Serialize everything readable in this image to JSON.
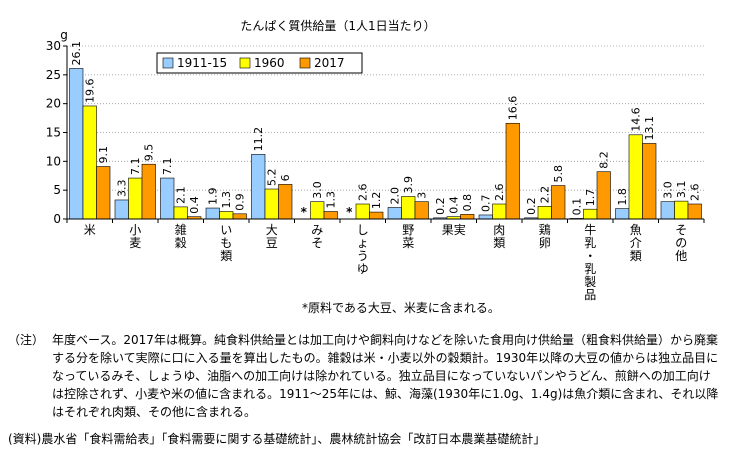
{
  "chart_data": {
    "type": "bar",
    "title": "たんぱく質供給量（1人1日当たり）",
    "ylabel": "g",
    "ylim": [
      0,
      30
    ],
    "yticks": [
      0,
      5,
      10,
      15,
      20,
      25,
      30
    ],
    "categories": [
      "米",
      "小麦",
      "雑穀",
      "いも類",
      "大豆",
      "みそ",
      "しょうゆ",
      "野菜",
      "果実",
      "肉類",
      "鶏卵",
      "牛乳・乳製品",
      "魚介類",
      "その他"
    ],
    "category_lines": [
      [
        "米"
      ],
      [
        "小",
        "麦"
      ],
      [
        "雑",
        "穀"
      ],
      [
        "い",
        "も",
        "類"
      ],
      [
        "大",
        "豆"
      ],
      [
        "み",
        "そ"
      ],
      [
        "し",
        "ょ",
        "う",
        "ゆ"
      ],
      [
        "野",
        "菜"
      ],
      [
        "果実"
      ],
      [
        "肉",
        "類"
      ],
      [
        "鶏",
        "卵"
      ],
      [
        "牛",
        "乳",
        "・",
        "乳",
        "製",
        "品"
      ],
      [
        "魚",
        "介",
        "類"
      ],
      [
        "そ",
        "の",
        "他"
      ]
    ],
    "series": [
      {
        "name": "1911-15",
        "color": "#99ccff",
        "values": [
          26.1,
          3.3,
          7.1,
          1.9,
          11.2,
          null,
          null,
          2.0,
          0.2,
          0.7,
          0.2,
          0.1,
          1.8,
          3.0
        ],
        "labels": [
          "26.1",
          "3.3",
          "7.1",
          "1.9",
          "11.2",
          "",
          "",
          "2.0",
          "0.2",
          "0.7",
          "0.2",
          "0.1",
          "1.8",
          "3.0"
        ]
      },
      {
        "name": "1960",
        "color": "#ffff00",
        "values": [
          19.6,
          7.1,
          2.1,
          1.3,
          5.2,
          3.0,
          2.6,
          3.9,
          0.4,
          2.6,
          2.2,
          1.7,
          14.6,
          3.1
        ],
        "labels": [
          "19.6",
          "7.1",
          "2.1",
          "1.3",
          "5.2",
          "3.0",
          "2.6",
          "3.9",
          "0.4",
          "2.6",
          "2.2",
          "1.7",
          "14.6",
          "3.1"
        ]
      },
      {
        "name": "2017",
        "color": "#ff9900",
        "values": [
          9.1,
          9.5,
          0.4,
          0.9,
          6.0,
          1.3,
          1.2,
          3.0,
          0.8,
          16.6,
          5.8,
          8.2,
          13.1,
          2.6
        ],
        "labels": [
          "9.1",
          "9.5",
          "0.4",
          "0.9",
          "6",
          "1.3",
          "1.2",
          "3",
          "0.8",
          "16.6",
          "5.8",
          "8.2",
          "13.1",
          "2.6"
        ]
      }
    ],
    "asterisk_marks": [
      {
        "category": "みそ",
        "text": "*"
      },
      {
        "category": "しょうゆ",
        "text": "*"
      }
    ],
    "footnote": "*原料である大豆、米麦に含まれる。",
    "legend_position": "top-left"
  },
  "notes": {
    "label": "（注）",
    "text": "年度ベース。2017年は概算。純食料供給量とは加工向けや飼料向けなどを除いた食用向け供給量（粗食料供給量）から廃棄する分を除いて実際に口に入る量を算出したもの。雑穀は米・小麦以外の穀類計。1930年以降の大豆の値からは独立品目になっているみそ、しょうゆ、油脂への加工向けは除かれている。独立品目になっていないパンやうどん、煎餅への加工向けは控除されず、小麦や米の値に含まれる。1911～25年には、鯨、海藻(1930年に1.0g、1.4g)は魚介類に含まれ、それ以降はそれぞれ肉類、その他に含まれる。"
  },
  "source": "(資料)農水省「食料需給表」「食料需要に関する基礎統計」、農林統計協会「改訂日本農業基礎統計」"
}
